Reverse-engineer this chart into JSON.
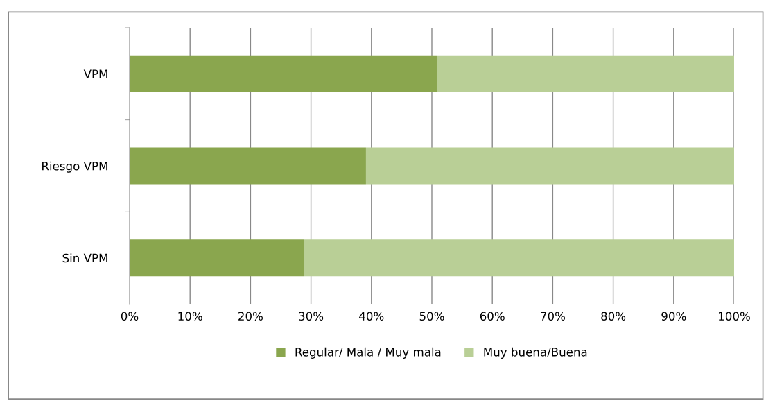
{
  "chart_data": {
    "type": "bar",
    "orientation": "horizontal",
    "stacked": true,
    "categories": [
      "VPM",
      "Riesgo VPM",
      "Sin VPM"
    ],
    "series": [
      {
        "name": "Regular/ Mala / Muy mala",
        "color": "#8aa64e",
        "values": [
          50.9,
          39.1,
          28.9
        ]
      },
      {
        "name": "Muy buena/Buena",
        "color": "#b9cf96",
        "values": [
          49.1,
          60.9,
          71.1
        ]
      }
    ],
    "xlim": [
      0,
      100
    ],
    "xticks": [
      {
        "value": 0,
        "label": "0%"
      },
      {
        "value": 10,
        "label": "10%"
      },
      {
        "value": 20,
        "label": "20%"
      },
      {
        "value": 30,
        "label": "30%"
      },
      {
        "value": 40,
        "label": "40%"
      },
      {
        "value": 50,
        "label": "50%"
      },
      {
        "value": 60,
        "label": "60%"
      },
      {
        "value": 70,
        "label": "70%"
      },
      {
        "value": 80,
        "label": "80%"
      },
      {
        "value": 90,
        "label": "90%"
      },
      {
        "value": 100,
        "label": "100%"
      }
    ],
    "grid": "x",
    "legend": "bottom"
  }
}
